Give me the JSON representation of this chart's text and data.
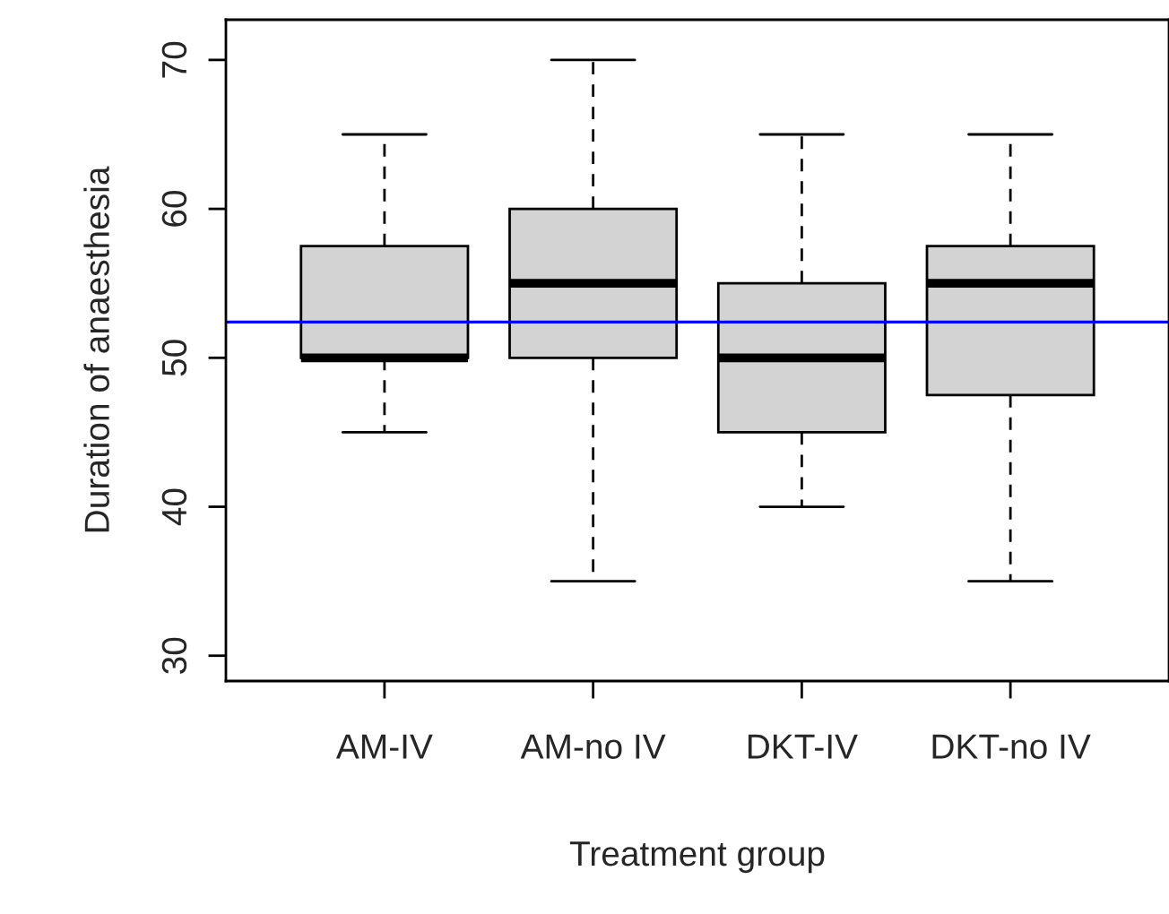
{
  "chart_data": {
    "type": "box",
    "xlabel": "Treatment group",
    "ylabel": "Duration of anaesthesia",
    "categories": [
      "AM-IV",
      "AM-no IV",
      "DKT-IV",
      "DKT-no IV"
    ],
    "boxes": [
      {
        "low": 45,
        "q1": 50,
        "median": 50,
        "q3": 57.5,
        "high": 65
      },
      {
        "low": 35,
        "q1": 50,
        "median": 55,
        "q3": 60,
        "high": 70
      },
      {
        "low": 40,
        "q1": 45,
        "median": 50,
        "q3": 55,
        "high": 65
      },
      {
        "low": 35,
        "q1": 47.5,
        "median": 55,
        "q3": 57.5,
        "high": 65
      }
    ],
    "color": "#d3d3d3",
    "ylim": [
      28.3,
      72.7
    ],
    "yticks": [
      30,
      40,
      50,
      60,
      70
    ],
    "ref_lines": [
      {
        "axis": "y",
        "value": 52.4,
        "color": "#0000ff"
      }
    ],
    "grid": false
  }
}
